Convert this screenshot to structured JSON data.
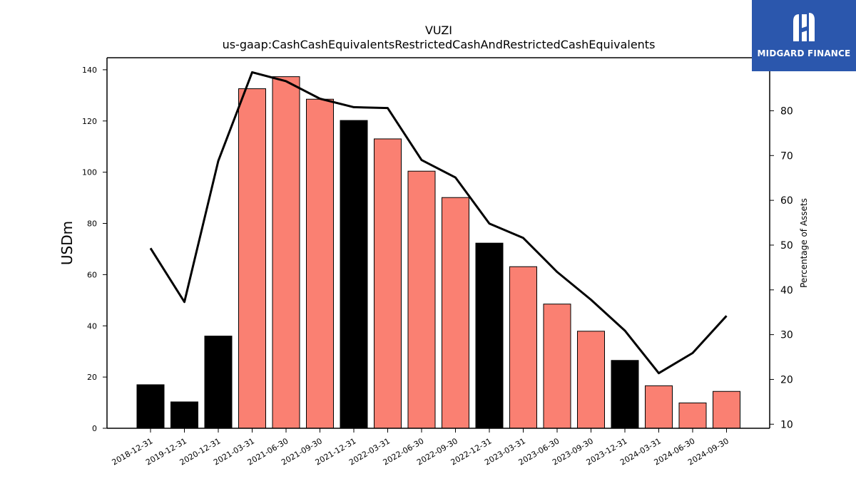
{
  "logo": {
    "text": "MIDGARD FINANCE",
    "background": "#2b57ad"
  },
  "chart_data": {
    "type": "bar",
    "title": "VUZI",
    "subtitle": "us-gaap:CashCashEquivalentsRestrictedCashAndRestrictedCashEquivalents",
    "ylabel": "USDm",
    "y2label": "Percentage of Assets",
    "categories": [
      "2018-12-31",
      "2019-12-31",
      "2020-12-31",
      "2021-03-31",
      "2021-06-30",
      "2021-09-30",
      "2021-12-31",
      "2022-03-31",
      "2022-06-30",
      "2022-09-30",
      "2022-12-31",
      "2023-03-31",
      "2023-06-30",
      "2023-09-30",
      "2023-12-31",
      "2024-03-31",
      "2024-06-30",
      "2024-09-30"
    ],
    "series": [
      {
        "type": "bar",
        "values": [
          17.0,
          10.3,
          36.0,
          132.6,
          137.3,
          128.5,
          120.2,
          113.0,
          100.4,
          90.1,
          72.3,
          63.1,
          48.5,
          37.9,
          26.5,
          16.6,
          9.9,
          14.4
        ]
      },
      {
        "type": "line",
        "axis": "right",
        "color": "#000000",
        "values": [
          49.3,
          37.3,
          68.8,
          88.6,
          86.6,
          82.7,
          80.8,
          80.6,
          69.0,
          65.1,
          54.8,
          51.6,
          44.0,
          37.8,
          30.9,
          21.4,
          25.9,
          34.2
        ]
      }
    ],
    "bar_colors": [
      "#000000",
      "#000000",
      "#000000",
      "#fa8072",
      "#fa8072",
      "#fa8072",
      "#000000",
      "#fa8072",
      "#fa8072",
      "#fa8072",
      "#000000",
      "#fa8072",
      "#fa8072",
      "#fa8072",
      "#000000",
      "#fa8072",
      "#fa8072",
      "#fa8072"
    ],
    "ylim": [
      0,
      144.7
    ],
    "yticks": [
      0,
      20,
      40,
      60,
      80,
      100,
      120,
      140
    ],
    "y2lim": [
      9.09,
      91.85
    ],
    "y2ticks": [
      10,
      20,
      30,
      40,
      50,
      60,
      70,
      80
    ],
    "grid": false
  }
}
